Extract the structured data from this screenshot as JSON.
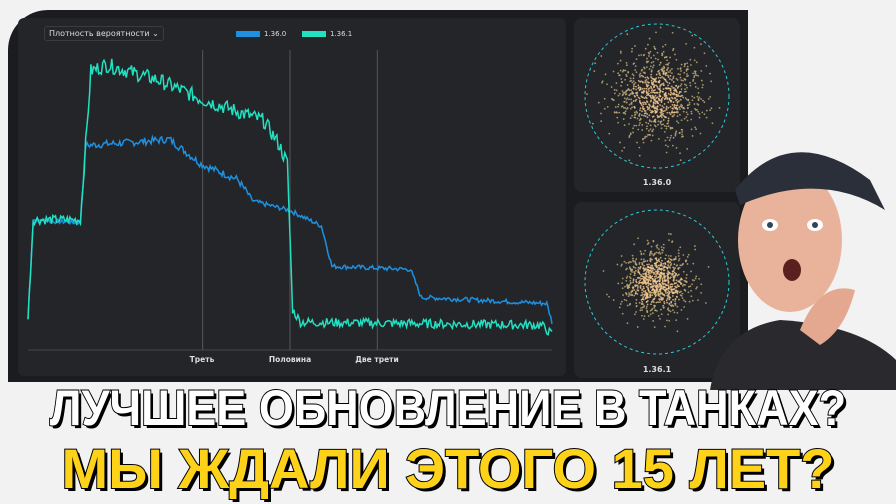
{
  "chart_data": {
    "type": "line",
    "dropdown_label": "Плотность вероятности",
    "xlim": [
      0,
      1
    ],
    "ylim": [
      0,
      1
    ],
    "grid": false,
    "legend_placement": "top-center",
    "x_ticks": [
      {
        "x": 0.3333,
        "label": "Треть"
      },
      {
        "x": 0.5,
        "label": "Половина"
      },
      {
        "x": 0.6667,
        "label": "Две трети"
      }
    ],
    "series": [
      {
        "name": "1.36.0",
        "color": "#1e90e0",
        "points": [
          [
            0,
            0.1
          ],
          [
            0.01,
            0.42
          ],
          [
            0.1,
            0.41
          ],
          [
            0.11,
            0.66
          ],
          [
            0.2,
            0.67
          ],
          [
            0.27,
            0.68
          ],
          [
            0.33,
            0.6
          ],
          [
            0.4,
            0.55
          ],
          [
            0.43,
            0.48
          ],
          [
            0.5,
            0.45
          ],
          [
            0.56,
            0.4
          ],
          [
            0.58,
            0.27
          ],
          [
            0.73,
            0.26
          ],
          [
            0.75,
            0.17
          ],
          [
            0.99,
            0.15
          ],
          [
            1,
            0.09
          ]
        ]
      },
      {
        "name": "1.36.1",
        "color": "#22e0c0",
        "points": [
          [
            0,
            0.1
          ],
          [
            0.01,
            0.42
          ],
          [
            0.1,
            0.42
          ],
          [
            0.12,
            0.9
          ],
          [
            0.15,
            0.92
          ],
          [
            0.25,
            0.87
          ],
          [
            0.33,
            0.81
          ],
          [
            0.45,
            0.74
          ],
          [
            0.48,
            0.66
          ],
          [
            0.495,
            0.6
          ],
          [
            0.505,
            0.13
          ],
          [
            0.52,
            0.09
          ],
          [
            0.98,
            0.08
          ],
          [
            1,
            0.05
          ]
        ]
      }
    ]
  },
  "side_panels": [
    {
      "label": "1.36.0",
      "spread": "wide"
    },
    {
      "label": "1.36.1",
      "spread": "tight"
    }
  ],
  "headline": {
    "line1": "ЛУЧШЕЕ ОБНОВЛЕНИЕ В ТАНКАХ?",
    "line2": "МЫ ЖДАЛИ ЭТОГО 15 ЛЕТ?"
  }
}
